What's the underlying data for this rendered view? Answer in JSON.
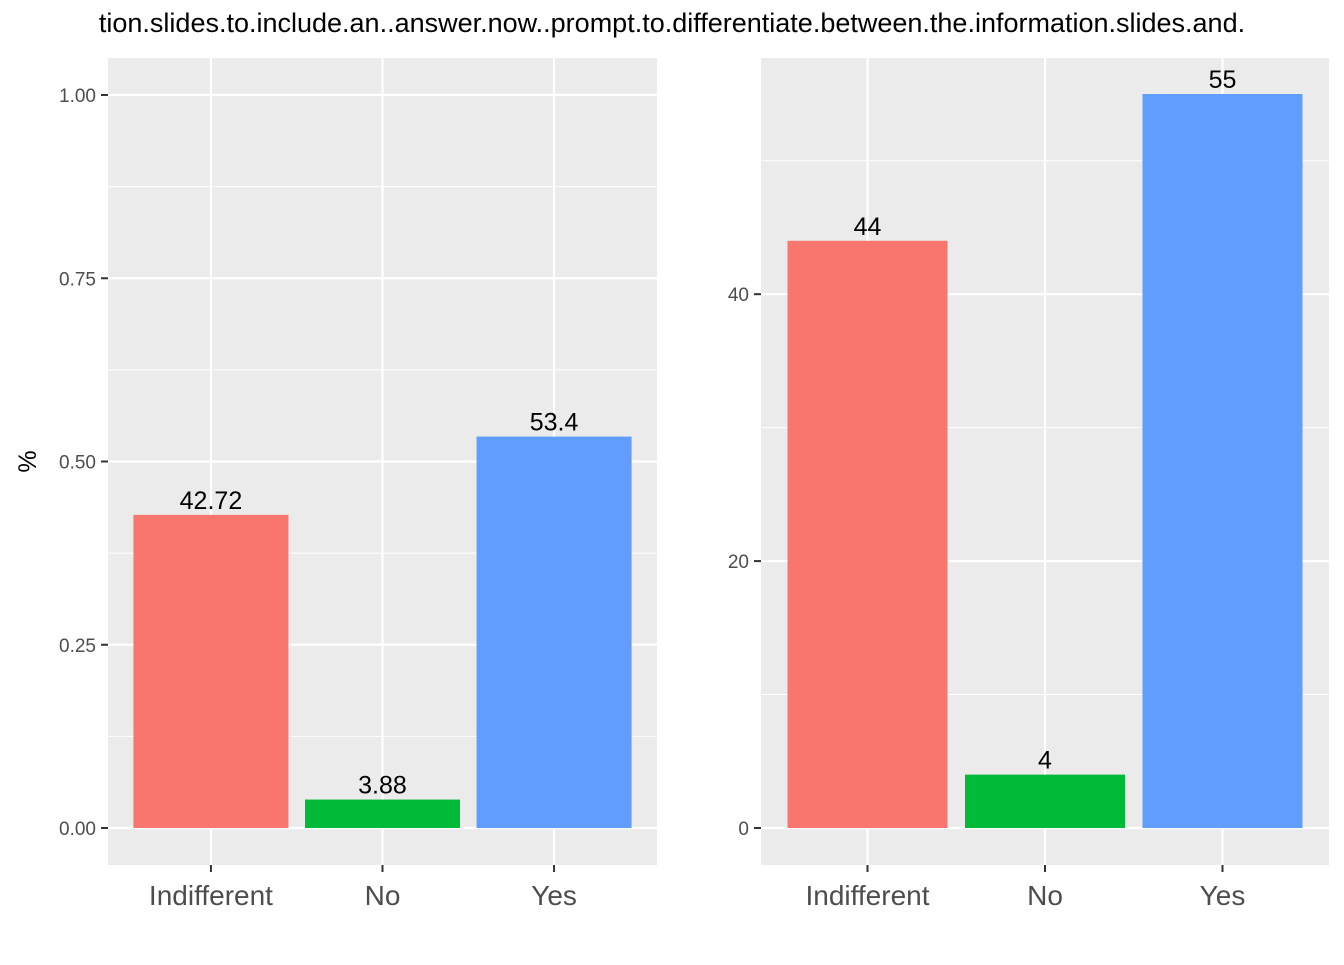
{
  "title": "tion.slides.to.include.an..answer.now..prompt.to.differentiate.between.the.information.slides.and.",
  "colors": {
    "panel_background": "#EBEBEB",
    "grid": "#FFFFFF",
    "axis_text": "#4D4D4D",
    "Indifferent": "#F8766D",
    "No": "#00BA38",
    "Yes": "#619CFF"
  },
  "chart_data": [
    {
      "type": "bar",
      "categories": [
        "Indifferent",
        "No",
        "Yes"
      ],
      "values": [
        0.4272,
        0.0388,
        0.534
      ],
      "data_labels": [
        "42.72",
        "3.88",
        "53.4"
      ],
      "ylabel": "%",
      "ylim": [
        0,
        1.05
      ],
      "yticks": [
        0,
        0.25,
        0.5,
        0.75,
        1.0
      ],
      "ytick_labels": [
        "0.00",
        "0.25",
        "0.50",
        "0.75",
        "1.00"
      ],
      "grid": true
    },
    {
      "type": "bar",
      "categories": [
        "Indifferent",
        "No",
        "Yes"
      ],
      "values": [
        44,
        4,
        55
      ],
      "data_labels": [
        "44",
        "4",
        "55"
      ],
      "ylabel": "",
      "ylim": [
        0,
        57.75
      ],
      "yticks": [
        0,
        20,
        40
      ],
      "ytick_labels": [
        "0",
        "20",
        "40"
      ],
      "grid": true
    }
  ]
}
